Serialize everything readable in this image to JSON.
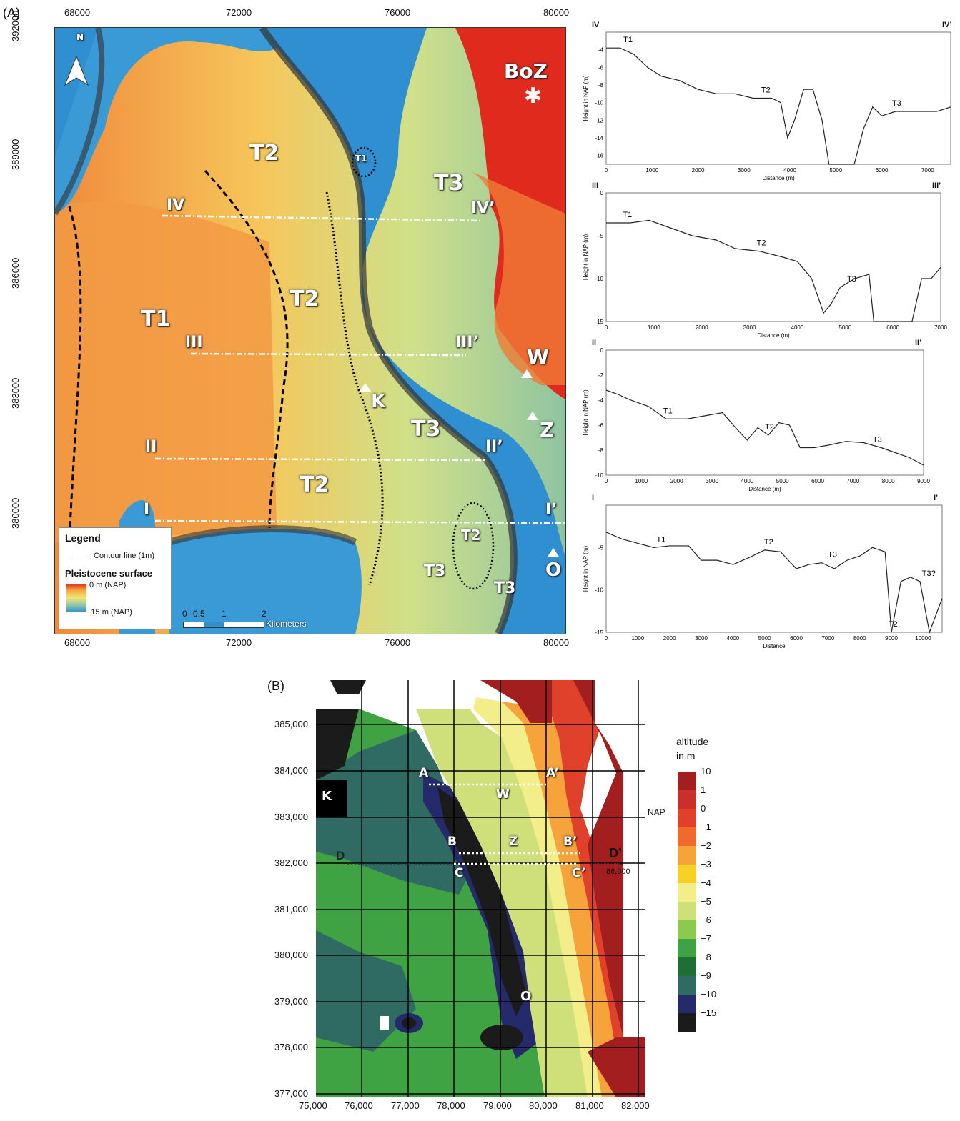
{
  "panel_a": {
    "label": "(A)",
    "x_ticks": [
      "68000",
      "72000",
      "76000",
      "80000"
    ],
    "y_ticks": [
      "392000",
      "389000",
      "386000",
      "383000",
      "380000"
    ],
    "north": "N",
    "site_labels": {
      "boz": "BoZ",
      "w": "W",
      "z": "Z",
      "k": "K",
      "o": "O"
    },
    "terrace_labels": [
      "T1",
      "T2",
      "T2",
      "T2",
      "T3",
      "T3",
      "T3",
      "T3",
      "T2",
      "T1"
    ],
    "section_labels": [
      "IV",
      "IV’",
      "III",
      "III’",
      "II",
      "II’",
      "I",
      "I’"
    ],
    "legend": {
      "title": "Legend",
      "contour": "Contour line (1m)",
      "surface": "Pleistocene surface",
      "high": "0 m (NAP)",
      "low": "−15 m (NAP)",
      "scale_ticks": [
        "0",
        "0.5",
        "1",
        "2"
      ],
      "scale_unit": "Kilometers"
    },
    "colors": {
      "red": "#e02a1e",
      "orange": "#f08a3c",
      "yellow": "#f2e47a",
      "green": "#9fcf8e",
      "blue": "#2f8fd1",
      "contour": "#333333"
    }
  },
  "profiles": [
    {
      "start": "IV",
      "end": "IV’",
      "ylabel": "Height in NAP (m)",
      "xlabel": "Distance (m)",
      "yticks": [
        "-4",
        "-6",
        "-8",
        "-10",
        "-12",
        "-14",
        "-16"
      ],
      "xticks": [
        "0",
        "1000",
        "2000",
        "3000",
        "4000",
        "5000",
        "6000",
        "7000"
      ],
      "terraces": [
        "T1",
        "T2",
        "T3"
      ],
      "chart_data": {
        "type": "line",
        "x": [
          0,
          300,
          600,
          900,
          1200,
          1600,
          2000,
          2400,
          2800,
          3200,
          3600,
          3800,
          3950,
          4100,
          4300,
          4500,
          4700,
          4850,
          5400,
          5600,
          5800,
          6000,
          6300,
          6600,
          6900,
          7200,
          7500
        ],
        "y": [
          -3.8,
          -3.8,
          -4.5,
          -6,
          -7,
          -7.5,
          -8.5,
          -9,
          -9,
          -9.5,
          -9.5,
          -10,
          -14,
          -12,
          -8.5,
          -8.5,
          -12,
          -17,
          -17,
          -13,
          -10.5,
          -11.5,
          -11,
          -11,
          -11,
          -11,
          -10.5
        ],
        "ylim": [
          -17,
          -2
        ],
        "xlim": [
          0,
          7500
        ]
      }
    },
    {
      "start": "III",
      "end": "III’",
      "ylabel": "Height in NAP (m)",
      "xlabel": "Distance (m)",
      "yticks": [
        "0",
        "-5",
        "-10",
        "-15"
      ],
      "xticks": [
        "0",
        "1000",
        "2000",
        "3000",
        "4000",
        "5000",
        "6000",
        "7000"
      ],
      "terraces": [
        "T1",
        "T2",
        "T3"
      ],
      "chart_data": {
        "type": "line",
        "x": [
          0,
          500,
          900,
          1300,
          1800,
          2300,
          2700,
          3200,
          3700,
          4000,
          4300,
          4550,
          4700,
          4900,
          5200,
          5500,
          5600,
          6400,
          6600,
          6800,
          7000
        ],
        "y": [
          -3.5,
          -3.5,
          -3.2,
          -4,
          -5,
          -5.5,
          -6.5,
          -6.8,
          -7.5,
          -8,
          -10,
          -14,
          -13,
          -11,
          -10,
          -9.5,
          -15,
          -15,
          -10,
          -10,
          -8.7
        ],
        "ylim": [
          -15,
          0
        ],
        "xlim": [
          0,
          7000
        ]
      }
    },
    {
      "start": "II",
      "end": "II’",
      "ylabel": "Height in NAP (m)",
      "xlabel": "Distance (m)",
      "yticks": [
        "0",
        "-2",
        "-4",
        "-6",
        "-8",
        "-10"
      ],
      "xticks": [
        "0",
        "1000",
        "2000",
        "3000",
        "4000",
        "5000",
        "6000",
        "7000",
        "8000",
        "9000"
      ],
      "terraces": [
        "T1",
        "T2",
        "T3"
      ],
      "chart_data": {
        "type": "line",
        "x": [
          0,
          300,
          700,
          1200,
          1700,
          2300,
          2900,
          3300,
          3700,
          4000,
          4300,
          4600,
          4900,
          5200,
          5500,
          5900,
          6300,
          6800,
          7300,
          7800,
          8200,
          8600,
          9000
        ],
        "y": [
          -3.2,
          -3.5,
          -4,
          -4.5,
          -5.5,
          -5.5,
          -5.2,
          -5,
          -6.3,
          -7.2,
          -6.2,
          -6.8,
          -5.8,
          -6,
          -7.8,
          -7.8,
          -7.6,
          -7.3,
          -7.4,
          -7.8,
          -8.2,
          -8.6,
          -9.2
        ],
        "ylim": [
          -10,
          0
        ],
        "xlim": [
          0,
          9000
        ]
      }
    },
    {
      "start": "I",
      "end": "I’",
      "ylabel": "Height in NAP (m)",
      "xlabel": "Distance",
      "yticks": [
        "-5",
        "-10",
        "-15"
      ],
      "xticks": [
        "0",
        "1000",
        "2000",
        "3000",
        "4000",
        "5000",
        "6000",
        "7000",
        "8000",
        "9000",
        "10000"
      ],
      "terraces": [
        "T1",
        "T2",
        "T3",
        "T2",
        "T3?"
      ],
      "chart_data": {
        "type": "line",
        "x": [
          0,
          500,
          1000,
          1500,
          2000,
          2600,
          3000,
          3500,
          4000,
          4500,
          5000,
          5500,
          6000,
          6400,
          6800,
          7200,
          7600,
          8000,
          8400,
          8800,
          9000,
          9300,
          9600,
          9900,
          10200,
          10400,
          10600
        ],
        "y": [
          -3.2,
          -4,
          -4.5,
          -5,
          -4.8,
          -4.8,
          -6.5,
          -6.5,
          -7,
          -6.2,
          -5.3,
          -5.5,
          -7.5,
          -7,
          -6.8,
          -7.5,
          -6.5,
          -6,
          -5,
          -5.5,
          -15,
          -9,
          -8.5,
          -9,
          -15,
          -13,
          -11
        ],
        "ylim": [
          -15,
          0
        ],
        "xlim": [
          0,
          10600
        ]
      }
    }
  ],
  "panel_b": {
    "label": "(B)",
    "x_ticks": [
      "75,000",
      "76,000",
      "77,000",
      "78,000",
      "79,000",
      "80,000",
      "81,000",
      "82,000"
    ],
    "y_ticks": [
      "385,000",
      "384,000",
      "383,000",
      "382,000",
      "381,000",
      "380,000",
      "379,000",
      "378,000",
      "377,000"
    ],
    "sites": {
      "k": "K",
      "w": "W",
      "z": "Z",
      "o": "O"
    },
    "sections": {
      "a": "A",
      "a2": "A’",
      "b": "B",
      "b2": "B’",
      "c": "C",
      "c2": "C’",
      "d": "D",
      "d2": "D’",
      "d2_coord": "86,000"
    },
    "colorbar": {
      "title1": "altitude",
      "title2": "in m",
      "nap": "NAP",
      "labels": [
        "10",
        "1",
        "0",
        "−1",
        "−2",
        "−3",
        "−4",
        "−5",
        "−6",
        "−7",
        "−8",
        "−9",
        "−10",
        "−15"
      ],
      "colors": [
        "#a31f1f",
        "#c9302c",
        "#e0412b",
        "#ee6b2d",
        "#f5a33a",
        "#f6d229",
        "#f4ee8a",
        "#cfe07a",
        "#8bc94f",
        "#3fa343",
        "#1f6e36",
        "#2f6b62",
        "#252a6b",
        "#1b1b1b"
      ]
    }
  }
}
